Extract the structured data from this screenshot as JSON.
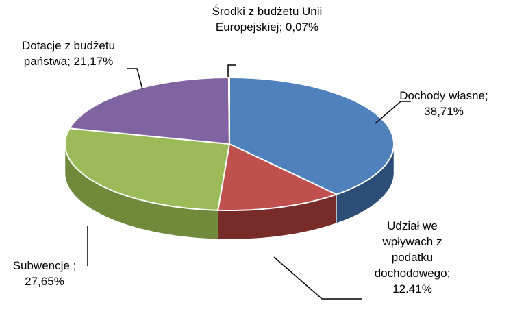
{
  "chart_data": {
    "type": "pie3d",
    "categories": [
      "Dochody własne;",
      "Udział we wpływach z podatku dochodowego;",
      "Subwencje ;",
      "Dotacje z budżetu państwa;",
      "Środki z budżetu Unii Europejskiej;"
    ],
    "values": [
      38.71,
      12.41,
      27.65,
      21.17,
      0.07
    ],
    "value_labels": [
      "38,71%",
      "12.41%",
      "27,65%",
      "21,17%",
      "0,07%"
    ],
    "colors": [
      "#4f81bd",
      "#c0504d",
      "#9bbb59",
      "#8064a2",
      "#4bacc6"
    ],
    "side_colors": [
      "#2c4d75",
      "#772c2a",
      "#6e8a3a",
      "#5c4776",
      "#31859c"
    ]
  }
}
